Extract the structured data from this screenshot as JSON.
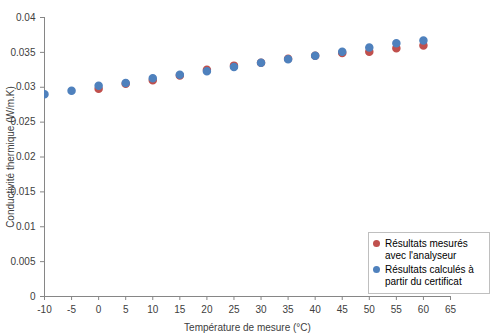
{
  "chart_data": {
    "type": "scatter",
    "xlabel": "Température de mesure (°C)",
    "ylabel": "Conductivité thermique (W/m.K)",
    "xlim": [
      -10,
      65
    ],
    "xticks": [
      -10,
      -5,
      0,
      5,
      10,
      15,
      20,
      25,
      30,
      35,
      40,
      45,
      50,
      55,
      60,
      65
    ],
    "ylim": [
      0,
      0.04
    ],
    "yticks": [
      0,
      0.005,
      0.01,
      0.015,
      0.02,
      0.025,
      0.03,
      0.035,
      0.04
    ],
    "grid": false,
    "legend": "bottom-right",
    "series": [
      {
        "name": "Résultats mesurés avec l'analyseur",
        "color": "#c0504d",
        "marker": "circle",
        "x": [
          0,
          5,
          10,
          15,
          20,
          25,
          30,
          35,
          40,
          45,
          50,
          55,
          60
        ],
        "values": [
          0.0298,
          0.0305,
          0.031,
          0.0317,
          0.0325,
          0.0331,
          0.0335,
          0.0341,
          0.0345,
          0.0349,
          0.0351,
          0.0356,
          0.036
        ]
      },
      {
        "name": "Résultats calculés à partir du certificat",
        "color": "#4f81bd",
        "marker": "circle",
        "x": [
          -10,
          -5,
          0,
          5,
          10,
          15,
          20,
          25,
          30,
          35,
          40,
          45,
          50,
          55,
          60
        ],
        "values": [
          0.029,
          0.0295,
          0.0302,
          0.0306,
          0.0313,
          0.0318,
          0.0323,
          0.0329,
          0.0335,
          0.034,
          0.0345,
          0.0351,
          0.0357,
          0.0363,
          0.0367
        ]
      }
    ]
  }
}
